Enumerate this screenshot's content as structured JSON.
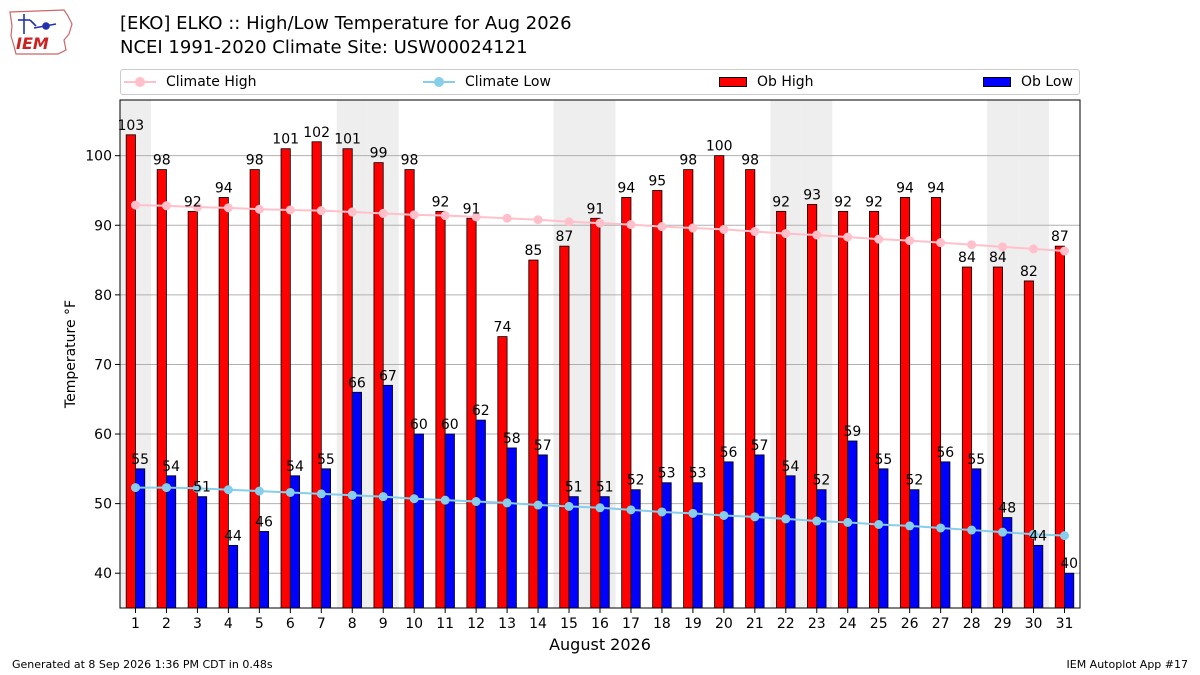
{
  "header": {
    "title_line1": "[EKO] ELKO :: High/Low Temperature for Aug 2026",
    "title_line2": "NCEI 1991-2020 Climate Site: USW00024121",
    "logo_text": "IEM"
  },
  "legend": {
    "climate_high": "Climate High",
    "climate_low": "Climate Low",
    "ob_high": "Ob High",
    "ob_low": "Ob Low"
  },
  "colors": {
    "ob_high": "#ff0000",
    "ob_low": "#0000ff",
    "climate_high": "#ffc0cb",
    "climate_low": "#87ceeb",
    "weekend_shade": "#eeeeee",
    "grid": "#b0b0b0"
  },
  "footer": {
    "generated": "Generated at 8 Sep 2026 1:36 PM CDT in 0.48s",
    "app": "IEM Autoplot App #17"
  },
  "chart_data": {
    "type": "bar",
    "xlabel": "August 2026",
    "ylabel": "Temperature °F",
    "ylim": [
      35,
      108
    ],
    "yticks": [
      40,
      50,
      60,
      70,
      80,
      90,
      100
    ],
    "grid": true,
    "legend_placement": "top",
    "categories": [
      "1",
      "2",
      "3",
      "4",
      "5",
      "6",
      "7",
      "8",
      "9",
      "10",
      "11",
      "12",
      "13",
      "14",
      "15",
      "16",
      "17",
      "18",
      "19",
      "20",
      "21",
      "22",
      "23",
      "24",
      "25",
      "26",
      "27",
      "28",
      "29",
      "30",
      "31"
    ],
    "shaded_days": [
      1,
      8,
      9,
      15,
      16,
      22,
      23,
      29,
      30
    ],
    "series": [
      {
        "name": "Ob High",
        "kind": "bar",
        "values": [
          103,
          98,
          92,
          94,
          98,
          101,
          102,
          101,
          99,
          98,
          92,
          91,
          74,
          85,
          87,
          91,
          94,
          95,
          98,
          100,
          98,
          92,
          93,
          92,
          92,
          94,
          94,
          84,
          84,
          82,
          87
        ]
      },
      {
        "name": "Ob Low",
        "kind": "bar",
        "values": [
          55,
          54,
          51,
          44,
          46,
          54,
          55,
          66,
          67,
          60,
          60,
          62,
          58,
          57,
          51,
          51,
          52,
          53,
          53,
          56,
          57,
          54,
          52,
          59,
          55,
          52,
          56,
          55,
          48,
          44,
          40
        ]
      },
      {
        "name": "Climate High",
        "kind": "line",
        "values": [
          92.9,
          92.8,
          92.6,
          92.5,
          92.3,
          92.2,
          92.1,
          91.9,
          91.7,
          91.5,
          91.4,
          91.2,
          91.0,
          90.8,
          90.5,
          90.3,
          90.1,
          89.8,
          89.6,
          89.4,
          89.1,
          88.8,
          88.6,
          88.3,
          88.0,
          87.8,
          87.5,
          87.2,
          86.9,
          86.6,
          86.3
        ]
      },
      {
        "name": "Climate Low",
        "kind": "line",
        "values": [
          52.3,
          52.3,
          52.2,
          52.0,
          51.8,
          51.6,
          51.4,
          51.2,
          51.0,
          50.7,
          50.5,
          50.3,
          50.1,
          49.8,
          49.6,
          49.4,
          49.1,
          48.8,
          48.6,
          48.3,
          48.1,
          47.8,
          47.5,
          47.3,
          47.0,
          46.8,
          46.5,
          46.2,
          45.9,
          45.6,
          45.4
        ]
      }
    ]
  }
}
